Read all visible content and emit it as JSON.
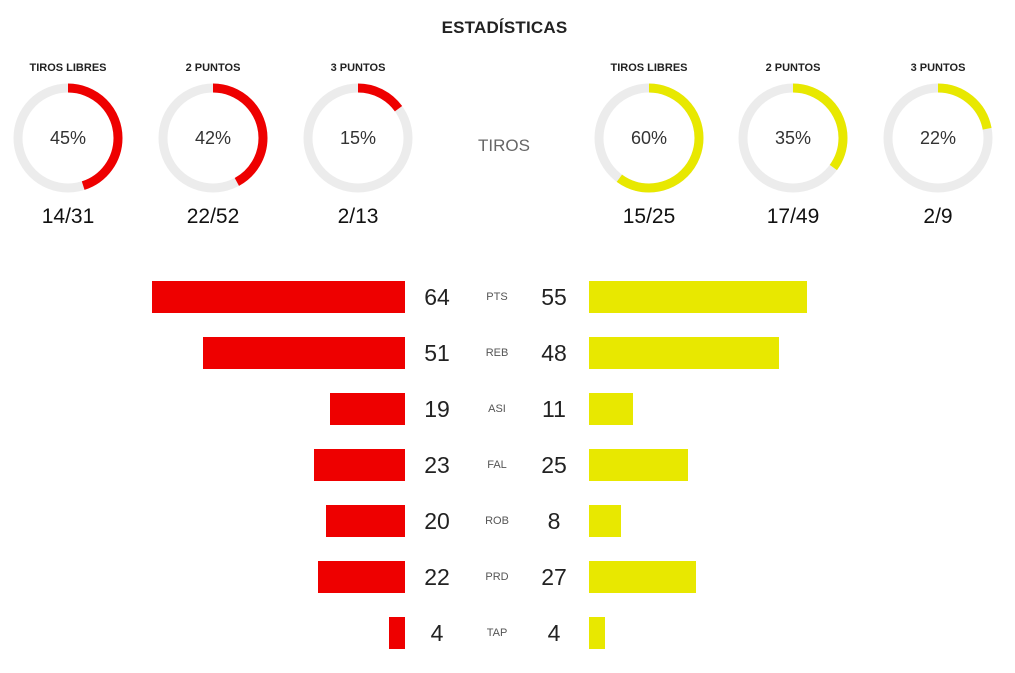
{
  "header": {
    "title": "ESTADÍSTICAS"
  },
  "shots_label": "TIROS",
  "colors": {
    "home": "#ee0000",
    "away": "#e8e800",
    "ring_bg": "#ececec"
  },
  "chart_data": [
    {
      "type": "gauge",
      "team": "home",
      "items": [
        {
          "label": "TIROS LIBRES",
          "pct": 45,
          "pct_label": "45%",
          "made": 14,
          "attempted": 31,
          "fraction": "14/31"
        },
        {
          "label": "2 PUNTOS",
          "pct": 42,
          "pct_label": "42%",
          "made": 22,
          "attempted": 52,
          "fraction": "22/52"
        },
        {
          "label": "3 PUNTOS",
          "pct": 15,
          "pct_label": "15%",
          "made": 2,
          "attempted": 13,
          "fraction": "2/13"
        }
      ]
    },
    {
      "type": "gauge",
      "team": "away",
      "items": [
        {
          "label": "TIROS LIBRES",
          "pct": 60,
          "pct_label": "60%",
          "made": 15,
          "attempted": 25,
          "fraction": "15/25"
        },
        {
          "label": "2 PUNTOS",
          "pct": 35,
          "pct_label": "35%",
          "made": 17,
          "attempted": 49,
          "fraction": "17/49"
        },
        {
          "label": "3 PUNTOS",
          "pct": 22,
          "pct_label": "22%",
          "made": 2,
          "attempted": 9,
          "fraction": "2/9"
        }
      ]
    },
    {
      "type": "bar",
      "orientation": "horizontal-butterfly",
      "categories": [
        "PTS",
        "REB",
        "ASI",
        "FAL",
        "ROB",
        "PRD",
        "TAP"
      ],
      "series": [
        {
          "values": [
            64,
            51,
            19,
            23,
            20,
            22,
            4
          ]
        },
        {
          "values": [
            55,
            48,
            11,
            25,
            8,
            27,
            4
          ]
        }
      ]
    }
  ]
}
